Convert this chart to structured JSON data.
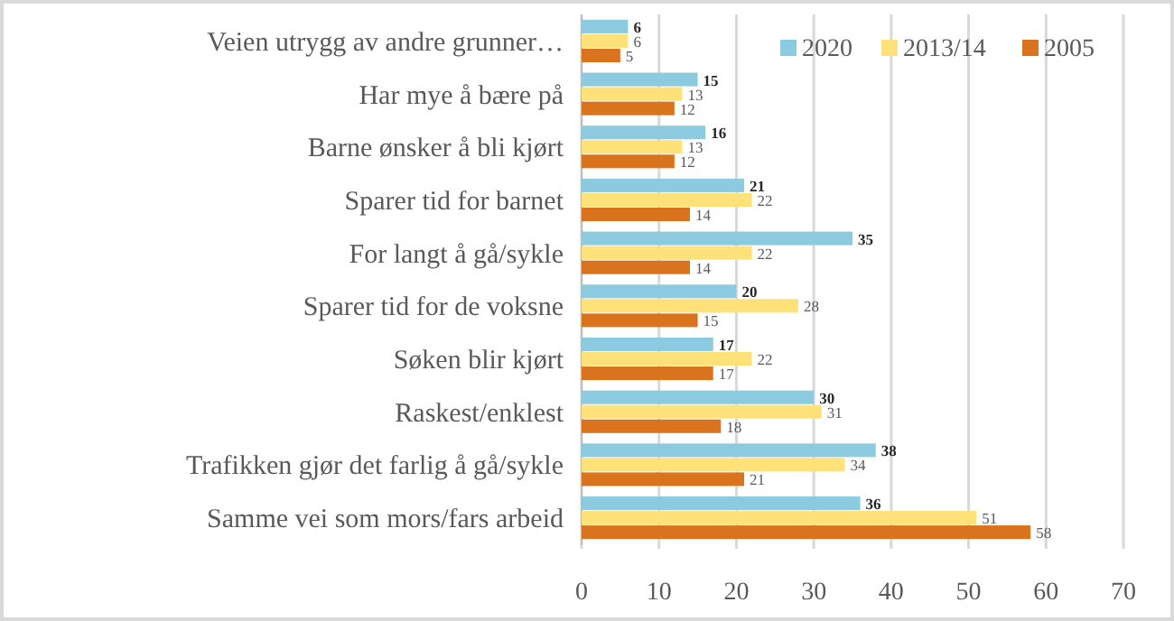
{
  "chart_data": {
    "type": "bar",
    "orientation": "horizontal",
    "categories": [
      "Veien utrygg av andre grunner…",
      "Har mye å bære på",
      "Barne ønsker å bli kjørt",
      "Sparer tid for barnet",
      "For langt å gå/sykle",
      "Sparer tid for de voksne",
      "Søken blir kjørt",
      "Raskest/enklest",
      "Trafikken gjør det farlig å gå/sykle",
      "Samme vei som mors/fars arbeid"
    ],
    "series": [
      {
        "name": "2020",
        "color": "#8ccbdf",
        "values": [
          6,
          15,
          16,
          21,
          35,
          20,
          17,
          30,
          38,
          36
        ]
      },
      {
        "name": "2013/14",
        "color": "#ffe17a",
        "values": [
          6,
          13,
          13,
          22,
          22,
          28,
          22,
          31,
          34,
          51
        ]
      },
      {
        "name": "2005",
        "color": "#d9731e",
        "values": [
          5,
          12,
          12,
          14,
          14,
          15,
          17,
          18,
          21,
          58
        ]
      }
    ],
    "xlim": [
      0,
      70
    ],
    "xticks": [
      0,
      10,
      20,
      30,
      40,
      50,
      60,
      70
    ],
    "grid": "x",
    "legend": "top right",
    "data_labels": true
  }
}
